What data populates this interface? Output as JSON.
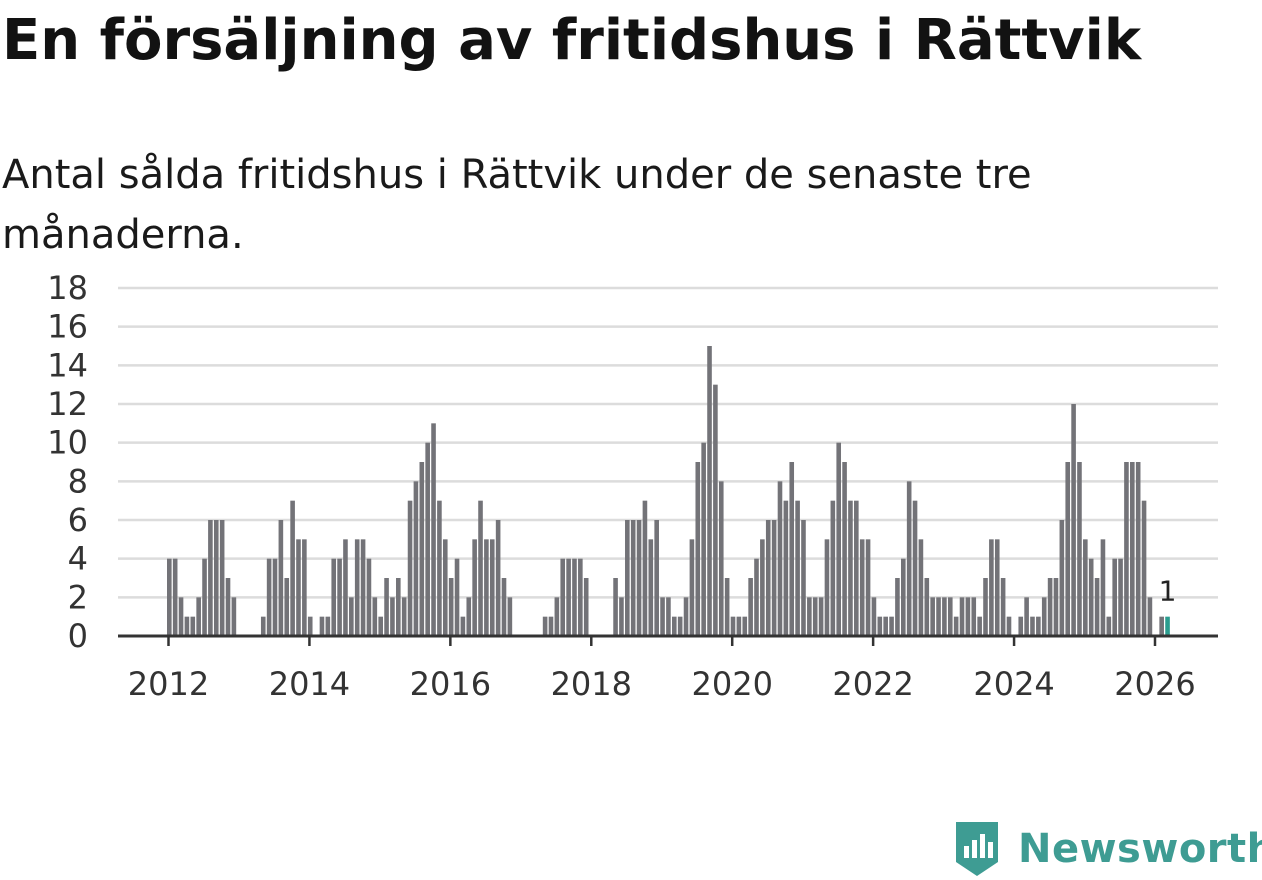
{
  "header": {
    "title": "En försäljning av fritidshus i Rättvik",
    "subtitle": "Antal sålda fritidshus i Rättvik under de senaste tre månaderna."
  },
  "brand": {
    "name": "Newsworthy",
    "color": "#3e9c93"
  },
  "colors": {
    "bar": "#737378",
    "highlight": "#2a9d8f",
    "grid": "#dcdcdc",
    "axis": "#333333"
  },
  "chart_data": {
    "type": "bar",
    "x_unit": "month",
    "start": "2012-01",
    "ylim": [
      0,
      18
    ],
    "yticks": [
      0,
      2,
      4,
      6,
      8,
      10,
      12,
      14,
      16,
      18
    ],
    "xticks": [
      "2012",
      "2014",
      "2016",
      "2018",
      "2020",
      "2022",
      "2024",
      "2026"
    ],
    "grid": true,
    "values": [
      4,
      4,
      2,
      1,
      1,
      2,
      4,
      6,
      6,
      6,
      3,
      2,
      0,
      0,
      0,
      0,
      1,
      4,
      4,
      6,
      3,
      7,
      5,
      5,
      1,
      0,
      1,
      1,
      4,
      4,
      5,
      2,
      5,
      5,
      4,
      2,
      1,
      3,
      2,
      3,
      2,
      7,
      8,
      9,
      10,
      11,
      7,
      5,
      3,
      4,
      1,
      2,
      5,
      7,
      5,
      5,
      6,
      3,
      2,
      0,
      0,
      0,
      0,
      0,
      1,
      1,
      2,
      4,
      4,
      4,
      4,
      3,
      0,
      0,
      0,
      0,
      3,
      2,
      6,
      6,
      6,
      7,
      5,
      6,
      2,
      2,
      1,
      1,
      2,
      5,
      9,
      10,
      15,
      13,
      8,
      3,
      1,
      1,
      1,
      3,
      4,
      5,
      6,
      6,
      8,
      7,
      9,
      7,
      6,
      2,
      2,
      2,
      5,
      7,
      10,
      9,
      7,
      7,
      5,
      5,
      2,
      1,
      1,
      1,
      3,
      4,
      8,
      7,
      5,
      3,
      2,
      2,
      2,
      2,
      1,
      2,
      2,
      2,
      1,
      3,
      5,
      5,
      3,
      1,
      0,
      1,
      2,
      1,
      1,
      2,
      3,
      3,
      6,
      9,
      12,
      9,
      5,
      4,
      3,
      5,
      1,
      4,
      4,
      9,
      9,
      9,
      7,
      2,
      0,
      1,
      1
    ],
    "highlight_index": 170,
    "highlight_label": "1"
  }
}
